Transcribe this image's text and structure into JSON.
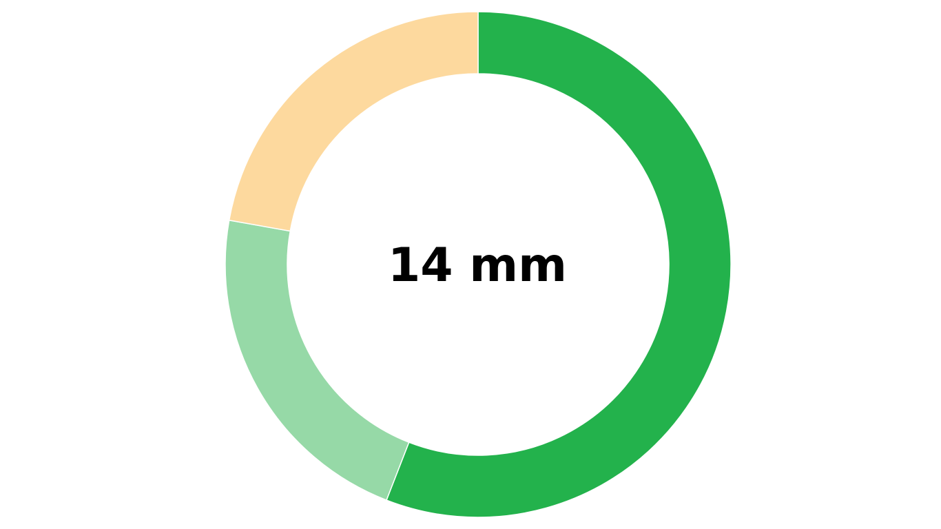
{
  "center_label": "14 mm",
  "chart_data": {
    "type": "pie",
    "variant": "donut",
    "title": "",
    "slices": [
      {
        "value": 55.9,
        "color": "#23b24c"
      },
      {
        "value": 21.9,
        "color": "#96d9a7"
      },
      {
        "value": 22.2,
        "color": "#fdd99e"
      }
    ],
    "start": "12 o'clock",
    "direction": "clockwise",
    "slice_separator_color": "#ffffff"
  }
}
